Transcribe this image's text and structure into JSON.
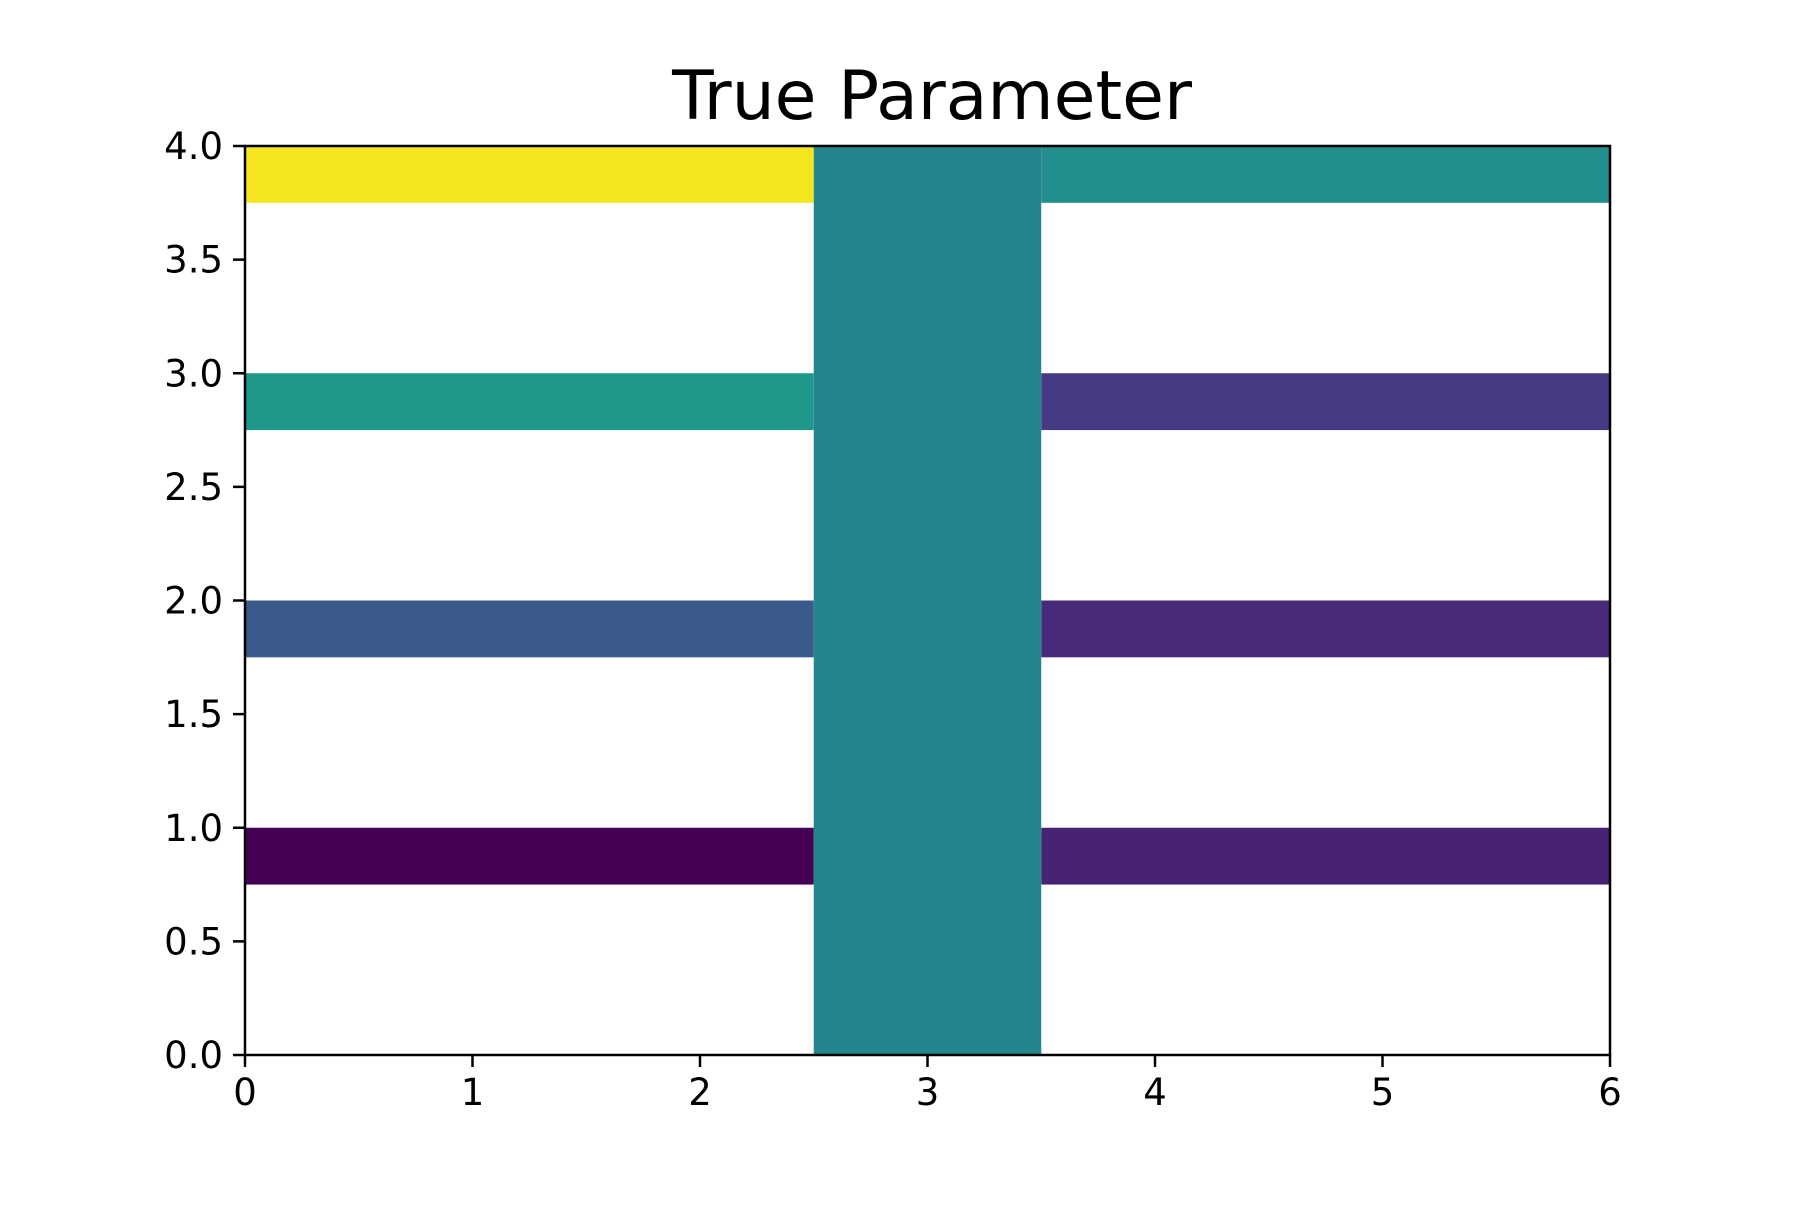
{
  "chart_data": {
    "type": "heatmap",
    "title": "True Parameter",
    "xlabel": "",
    "ylabel": "",
    "xlim": [
      0,
      6
    ],
    "ylim": [
      0,
      4
    ],
    "grid": false,
    "colormap": "viridis",
    "x_ticks": [
      "0",
      "1",
      "2",
      "3",
      "4",
      "5",
      "6"
    ],
    "y_ticks": [
      "0.0",
      "0.5",
      "1.0",
      "1.5",
      "2.0",
      "2.5",
      "3.0",
      "3.5",
      "4.0"
    ],
    "regions": [
      {
        "name": "central-column",
        "x": [
          2.5,
          3.5
        ],
        "y": [
          0.0,
          4.0
        ],
        "color": "#25858e"
      },
      {
        "name": "left-band-1",
        "x": [
          0.0,
          2.5
        ],
        "y": [
          0.75,
          1.0
        ],
        "color": "#440154"
      },
      {
        "name": "left-band-2",
        "x": [
          0.0,
          2.5
        ],
        "y": [
          1.75,
          2.0
        ],
        "color": "#3a5a8c"
      },
      {
        "name": "left-band-3",
        "x": [
          0.0,
          2.5
        ],
        "y": [
          2.75,
          3.0
        ],
        "color": "#1f9a8a"
      },
      {
        "name": "left-band-4",
        "x": [
          0.0,
          2.5
        ],
        "y": [
          3.75,
          4.0
        ],
        "color": "#f5e61f"
      },
      {
        "name": "right-band-1",
        "x": [
          3.5,
          6.0
        ],
        "y": [
          0.75,
          1.0
        ],
        "color": "#482373"
      },
      {
        "name": "right-band-2",
        "x": [
          3.5,
          6.0
        ],
        "y": [
          1.75,
          2.0
        ],
        "color": "#472a7a"
      },
      {
        "name": "right-band-3",
        "x": [
          3.5,
          6.0
        ],
        "y": [
          2.75,
          3.0
        ],
        "color": "#443b84"
      },
      {
        "name": "right-band-4",
        "x": [
          3.5,
          6.0
        ],
        "y": [
          3.75,
          4.0
        ],
        "color": "#218f8d"
      }
    ]
  }
}
